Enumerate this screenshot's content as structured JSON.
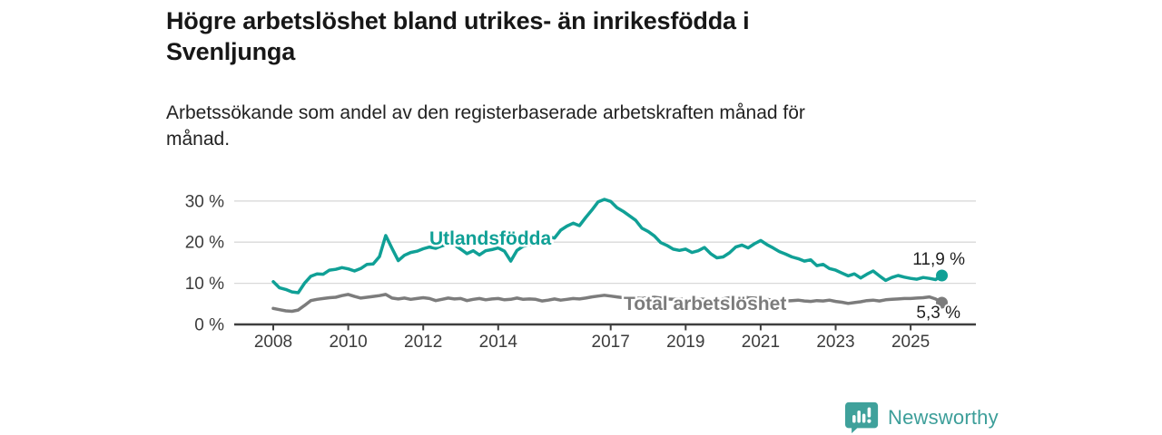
{
  "header": {
    "title_line1": "Högre arbetslöshet bland utrikes- än inrikesfödda i",
    "title_line2": "Svenljunga",
    "subtitle_line1": "Arbetssökande som andel av den registerbaserade arbetskraften månad för",
    "subtitle_line2": "månad."
  },
  "chart_data": {
    "type": "line",
    "title": "Högre arbetslöshet bland utrikes- än inrikesfödda i Svenljunga",
    "subtitle": "Arbetssökande som andel av den registerbaserade arbetskraften månad för månad.",
    "x_start_year": 2008,
    "points_per_year": 6,
    "x_end_year_approx": 2025.83,
    "x_tick_years": [
      2008,
      2010,
      2012,
      2014,
      2017,
      2019,
      2021,
      2023,
      2025
    ],
    "x_tick_labels": [
      "2008",
      "2010",
      "2012",
      "2014",
      "2017",
      "2019",
      "2021",
      "2023",
      "2025"
    ],
    "y_tick_values": [
      0,
      10,
      20,
      30
    ],
    "y_tick_labels": [
      "0 %",
      "10 %",
      "20 %",
      "30 %"
    ],
    "ylim": [
      0,
      32
    ],
    "grid": "horizontal",
    "legend_position": "inline-labels",
    "series": [
      {
        "name": "Utlandsfödda",
        "color": "#10a096",
        "end_label": "11,9 %",
        "end_value": 11.9,
        "values": [
          10.4,
          8.9,
          8.5,
          7.9,
          7.7,
          10.0,
          11.7,
          12.3,
          12.2,
          13.2,
          13.4,
          13.8,
          13.5,
          13.0,
          13.6,
          14.6,
          14.7,
          16.5,
          21.6,
          18.5,
          15.5,
          16.8,
          17.5,
          17.8,
          18.4,
          18.8,
          18.5,
          19.1,
          19.6,
          19.3,
          18.3,
          17.2,
          17.9,
          16.9,
          17.9,
          18.2,
          18.6,
          17.8,
          15.4,
          18.0,
          19.0,
          19.3,
          19.6,
          20.6,
          21.3,
          21.0,
          22.9,
          23.9,
          24.6,
          24.0,
          26.0,
          27.8,
          29.8,
          30.4,
          29.9,
          28.4,
          27.5,
          26.4,
          25.3,
          23.4,
          22.6,
          21.5,
          19.9,
          19.2,
          18.3,
          18.0,
          18.3,
          17.5,
          17.9,
          18.7,
          17.2,
          16.2,
          16.4,
          17.4,
          18.8,
          19.3,
          18.6,
          19.6,
          20.4,
          19.4,
          18.6,
          17.7,
          17.1,
          16.4,
          16.0,
          15.4,
          15.7,
          14.3,
          14.6,
          13.6,
          13.2,
          12.5,
          11.8,
          12.3,
          11.3,
          12.2,
          13.0,
          11.8,
          10.7,
          11.4,
          11.9,
          11.5,
          11.2,
          11.0,
          11.4,
          11.2,
          10.9,
          11.9
        ]
      },
      {
        "name": "Total arbetslöshet",
        "color": "#7c7c7c",
        "end_label": "5,3 %",
        "end_value": 5.3,
        "values": [
          3.9,
          3.6,
          3.3,
          3.2,
          3.5,
          4.6,
          5.8,
          6.1,
          6.3,
          6.5,
          6.6,
          7.0,
          7.3,
          6.8,
          6.4,
          6.6,
          6.8,
          7.0,
          7.3,
          6.4,
          6.2,
          6.4,
          6.1,
          6.3,
          6.5,
          6.3,
          5.8,
          6.1,
          6.4,
          6.2,
          6.3,
          5.8,
          6.1,
          6.3,
          6.0,
          6.2,
          6.3,
          6.0,
          6.1,
          6.4,
          6.1,
          6.2,
          6.1,
          5.7,
          5.9,
          6.2,
          5.9,
          6.1,
          6.3,
          6.2,
          6.4,
          6.7,
          6.9,
          7.1,
          6.9,
          6.7,
          6.5,
          6.6,
          6.4,
          6.3,
          6.5,
          6.6,
          6.4,
          6.2,
          6.1,
          6.2,
          6.1,
          6.0,
          6.2,
          6.1,
          5.9,
          6.0,
          6.2,
          6.5,
          6.8,
          6.7,
          6.5,
          6.4,
          6.3,
          6.1,
          5.9,
          5.8,
          5.7,
          5.8,
          5.9,
          5.7,
          5.6,
          5.8,
          5.7,
          5.9,
          5.6,
          5.4,
          5.1,
          5.3,
          5.5,
          5.8,
          5.9,
          5.7,
          6.0,
          6.1,
          6.2,
          6.3,
          6.3,
          6.4,
          6.5,
          6.7,
          6.2,
          5.3
        ]
      }
    ]
  },
  "footer": {
    "brand": "Newsworthy",
    "brand_color": "#3c9e99",
    "logo_icon": "bar-chart-speech-bubble-icon"
  }
}
